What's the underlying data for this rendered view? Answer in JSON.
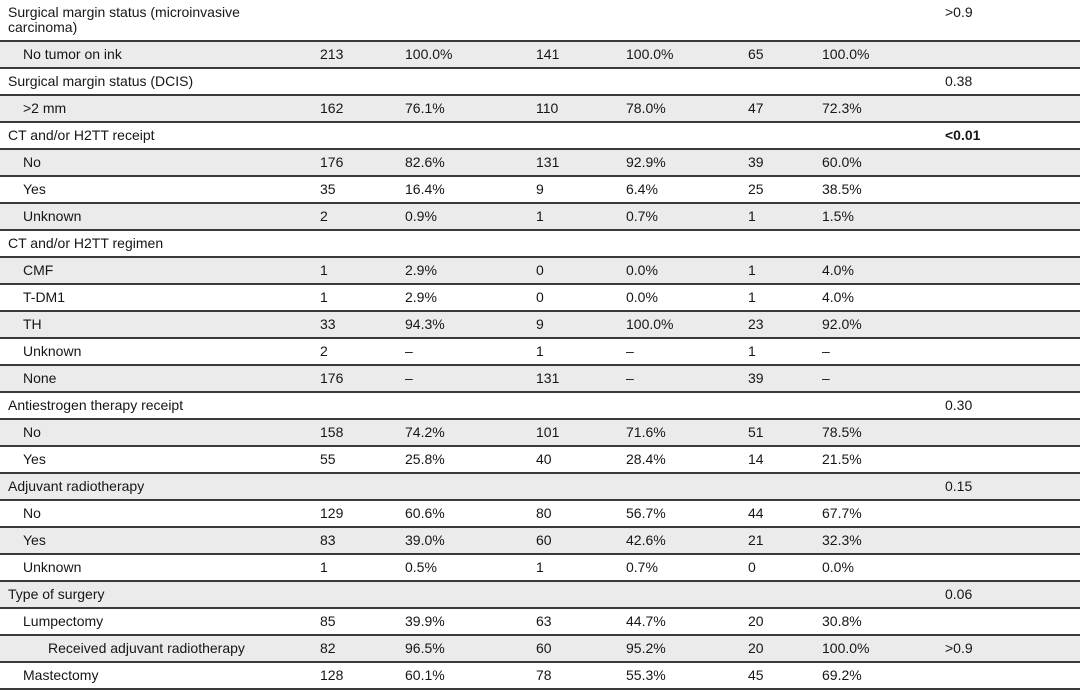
{
  "style_colors": {
    "row_shade": "#ebebeb",
    "rule": "#3a3a3a",
    "tick": "#979797",
    "text": "#161616"
  },
  "table": {
    "rows": [
      {
        "indent": 0,
        "label": "Surgical margin status (microinvasive carcinoma)",
        "cells": null,
        "p": ">0.9",
        "p_bold": false
      },
      {
        "indent": 1,
        "label": "No tumor on ink",
        "cells": [
          "213",
          "100.0%",
          "141",
          "100.0%",
          "65",
          "100.0%"
        ],
        "p": "",
        "p_bold": false
      },
      {
        "indent": 0,
        "label": "Surgical margin status (DCIS)",
        "cells": null,
        "p": "0.38",
        "p_bold": false
      },
      {
        "indent": 1,
        "label": ">2 mm",
        "cells": [
          "162",
          "76.1%",
          "110",
          "78.0%",
          "47",
          "72.3%"
        ],
        "p": "",
        "p_bold": false
      },
      {
        "indent": 0,
        "label": "CT and/or H2TT receipt",
        "cells": null,
        "p": "<0.01",
        "p_bold": true
      },
      {
        "indent": 1,
        "label": "No",
        "cells": [
          "176",
          "82.6%",
          "131",
          "92.9%",
          "39",
          "60.0%"
        ],
        "p": "",
        "p_bold": false
      },
      {
        "indent": 1,
        "label": "Yes",
        "cells": [
          "35",
          "16.4%",
          "9",
          "6.4%",
          "25",
          "38.5%"
        ],
        "p": "",
        "p_bold": false
      },
      {
        "indent": 1,
        "label": "Unknown",
        "cells": [
          "2",
          "0.9%",
          "1",
          "0.7%",
          "1",
          "1.5%"
        ],
        "p": "",
        "p_bold": false
      },
      {
        "indent": 0,
        "label": "CT and/or H2TT regimen",
        "cells": null,
        "p": "",
        "p_bold": false
      },
      {
        "indent": 1,
        "label": "CMF",
        "cells": [
          "1",
          "2.9%",
          "0",
          "0.0%",
          "1",
          "4.0%"
        ],
        "p": "",
        "p_bold": false
      },
      {
        "indent": 1,
        "label": "T-DM1",
        "cells": [
          "1",
          "2.9%",
          "0",
          "0.0%",
          "1",
          "4.0%"
        ],
        "p": "",
        "p_bold": false
      },
      {
        "indent": 1,
        "label": "TH",
        "cells": [
          "33",
          "94.3%",
          "9",
          "100.0%",
          "23",
          "92.0%"
        ],
        "p": "",
        "p_bold": false
      },
      {
        "indent": 1,
        "label": "Unknown",
        "cells": [
          "2",
          "–",
          "1",
          "–",
          "1",
          "–"
        ],
        "p": "",
        "p_bold": false
      },
      {
        "indent": 1,
        "label": "None",
        "cells": [
          "176",
          "–",
          "131",
          "–",
          "39",
          "–"
        ],
        "p": "",
        "p_bold": false
      },
      {
        "indent": 0,
        "label": "Antiestrogen therapy receipt",
        "cells": null,
        "p": "0.30",
        "p_bold": false
      },
      {
        "indent": 1,
        "label": "No",
        "cells": [
          "158",
          "74.2%",
          "101",
          "71.6%",
          "51",
          "78.5%"
        ],
        "p": "",
        "p_bold": false
      },
      {
        "indent": 1,
        "label": "Yes",
        "cells": [
          "55",
          "25.8%",
          "40",
          "28.4%",
          "14",
          "21.5%"
        ],
        "p": "",
        "p_bold": false
      },
      {
        "indent": 0,
        "label": "Adjuvant radiotherapy",
        "cells": null,
        "p": "0.15",
        "p_bold": false
      },
      {
        "indent": 1,
        "label": "No",
        "cells": [
          "129",
          "60.6%",
          "80",
          "56.7%",
          "44",
          "67.7%"
        ],
        "p": "",
        "p_bold": false
      },
      {
        "indent": 1,
        "label": "Yes",
        "cells": [
          "83",
          "39.0%",
          "60",
          "42.6%",
          "21",
          "32.3%"
        ],
        "p": "",
        "p_bold": false
      },
      {
        "indent": 1,
        "label": "Unknown",
        "cells": [
          "1",
          "0.5%",
          "1",
          "0.7%",
          "0",
          "0.0%"
        ],
        "p": "",
        "p_bold": false
      },
      {
        "indent": 0,
        "label": "Type of surgery",
        "cells": null,
        "p": "0.06",
        "p_bold": false
      },
      {
        "indent": 1,
        "label": "Lumpectomy",
        "cells": [
          "85",
          "39.9%",
          "63",
          "44.7%",
          "20",
          "30.8%"
        ],
        "p": "",
        "p_bold": false
      },
      {
        "indent": 2,
        "label": "Received adjuvant radiotherapy",
        "cells": [
          "82",
          "96.5%",
          "60",
          "95.2%",
          "20",
          "100.0%"
        ],
        "p": ">0.9",
        "p_bold": false
      },
      {
        "indent": 1,
        "label": "Mastectomy",
        "cells": [
          "128",
          "60.1%",
          "78",
          "55.3%",
          "45",
          "69.2%"
        ],
        "p": "",
        "p_bold": false
      }
    ]
  }
}
